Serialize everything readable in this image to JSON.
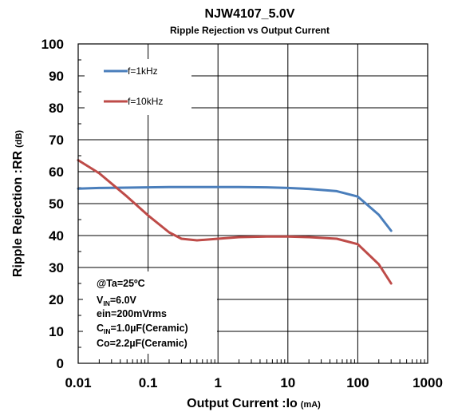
{
  "chart_data": {
    "type": "line",
    "title": "NJW4107_5.0V",
    "subtitle": "Ripple Rejection vs Output Current",
    "xlabel": "Output Current :Io",
    "xlabel_unit": "(mA)",
    "ylabel": "Ripple Rejection :RR",
    "ylabel_unit": "(dB)",
    "x_scale": "log",
    "xlim": [
      0.01,
      1000
    ],
    "ylim": [
      0,
      100
    ],
    "x_ticks": [
      "0.01",
      "0.1",
      "1",
      "10",
      "100",
      "1000"
    ],
    "x_tick_values": [
      0.01,
      0.1,
      1,
      10,
      100,
      1000
    ],
    "y_ticks": [
      "0",
      "10",
      "20",
      "30",
      "40",
      "50",
      "60",
      "70",
      "80",
      "90",
      "100"
    ],
    "y_tick_values": [
      0,
      10,
      20,
      30,
      40,
      50,
      60,
      70,
      80,
      90,
      100
    ],
    "grid": true,
    "legend_placement": "top-left",
    "series": [
      {
        "name": "f=1kHz",
        "color": "#4a7ebb",
        "points": [
          [
            0.01,
            54.7
          ],
          [
            0.02,
            54.9
          ],
          [
            0.05,
            55.0
          ],
          [
            0.1,
            55.1
          ],
          [
            0.2,
            55.2
          ],
          [
            0.5,
            55.2
          ],
          [
            1,
            55.2
          ],
          [
            2,
            55.2
          ],
          [
            5,
            55.1
          ],
          [
            10,
            54.9
          ],
          [
            20,
            54.6
          ],
          [
            50,
            53.9
          ],
          [
            100,
            52.2
          ],
          [
            200,
            46.5
          ],
          [
            300,
            41.5
          ]
        ]
      },
      {
        "name": "f=10kHz",
        "color": "#be4b48",
        "points": [
          [
            0.01,
            63.6
          ],
          [
            0.02,
            59.5
          ],
          [
            0.05,
            52.2
          ],
          [
            0.1,
            46.3
          ],
          [
            0.2,
            41.0
          ],
          [
            0.3,
            39.0
          ],
          [
            0.5,
            38.5
          ],
          [
            1,
            39.0
          ],
          [
            2,
            39.5
          ],
          [
            5,
            39.7
          ],
          [
            10,
            39.7
          ],
          [
            20,
            39.5
          ],
          [
            50,
            39.0
          ],
          [
            100,
            37.3
          ],
          [
            200,
            31.0
          ],
          [
            300,
            25.0
          ]
        ]
      }
    ],
    "annotations": {
      "temperature": "@Ta=25ºC",
      "vin_prefix": "V",
      "vin_sub": "IN",
      "vin_value": "=6.0V",
      "ein": "ein=200mVrms",
      "cin_prefix": "C",
      "cin_sub": "IN",
      "cin_value": "=1.0µF(Ceramic)",
      "co": "Co=2.2µF(Ceramic)"
    }
  }
}
